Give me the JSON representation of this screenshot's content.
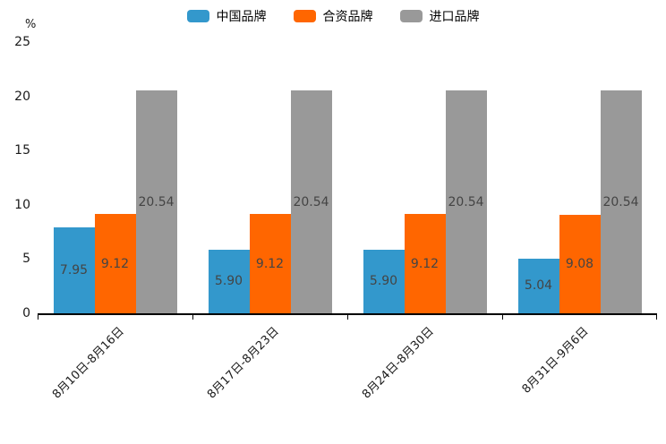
{
  "chart_data": {
    "type": "bar",
    "title": "",
    "unit_label": "%",
    "legend_position": "top",
    "grid": false,
    "ylim": [
      0,
      25
    ],
    "y_ticks": [
      0,
      5,
      10,
      15,
      20,
      25
    ],
    "categories": [
      "8月10日-8月16日",
      "8月17日-8月23日",
      "8月24日-8月30日",
      "8月31日-9月6日"
    ],
    "series": [
      {
        "name": "中国品牌",
        "color": "#3398cc",
        "values": [
          7.95,
          5.9,
          5.9,
          5.04
        ],
        "labels": [
          "7.95",
          "5.90",
          "5.90",
          "5.04"
        ]
      },
      {
        "name": "合资品牌",
        "color": "#ff6600",
        "values": [
          9.12,
          9.12,
          9.12,
          9.08
        ],
        "labels": [
          "9.12",
          "9.12",
          "9.12",
          "9.08"
        ]
      },
      {
        "name": "进口品牌",
        "color": "#999999",
        "values": [
          20.54,
          20.54,
          20.54,
          20.54
        ],
        "labels": [
          "20.54",
          "20.54",
          "20.54",
          "20.54"
        ]
      }
    ],
    "colors": {
      "axis_line": "#000000",
      "value_label_text": "#444444",
      "axis_text": "#1a1a1a"
    }
  }
}
